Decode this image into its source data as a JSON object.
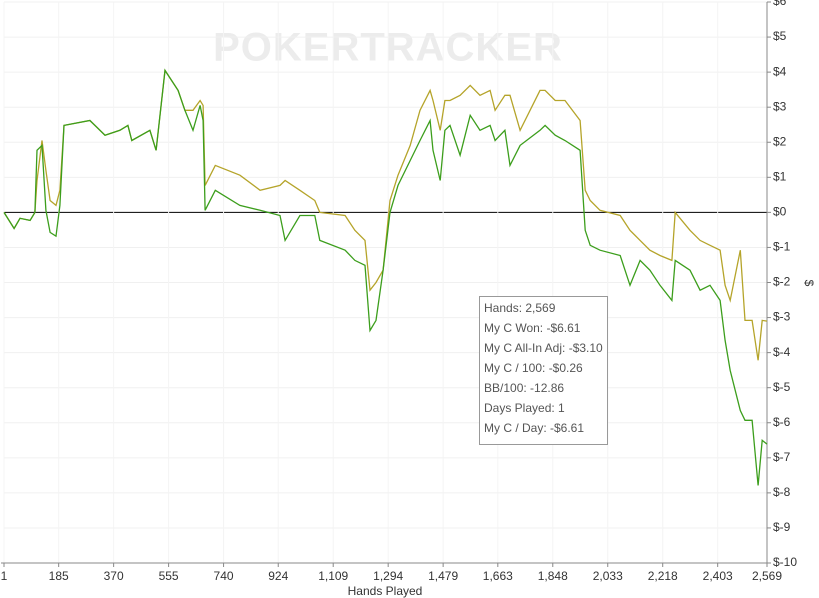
{
  "chart_data": {
    "type": "line",
    "watermark": "POKERTRACKER",
    "x_label": "Hands Played",
    "y_label": "$",
    "x": [
      1,
      35,
      55,
      89,
      105,
      112,
      129,
      142,
      156,
      176,
      189,
      203,
      290,
      341,
      391,
      418,
      431,
      492,
      513,
      543,
      587,
      610,
      637,
      661,
      671,
      678,
      712,
      795,
      863,
      930,
      947,
      997,
      1047,
      1064,
      1149,
      1182,
      1216,
      1233,
      1253,
      1277,
      1300,
      1327,
      1368,
      1401,
      1435,
      1445,
      1469,
      1485,
      1502,
      1536,
      1570,
      1603,
      1637,
      1654,
      1687,
      1704,
      1738,
      1805,
      1822,
      1856,
      1889,
      1940,
      1957,
      1974,
      2007,
      2075,
      2108,
      2142,
      2175,
      2209,
      2249,
      2260,
      2310,
      2344,
      2377,
      2411,
      2428,
      2445,
      2479,
      2495,
      2519,
      2539,
      2553,
      2569
    ],
    "series": [
      {
        "color": "#3c9e1c",
        "values": [
          0,
          -0.46,
          -0.17,
          -0.23,
          0,
          1.77,
          1.91,
          0.06,
          -0.57,
          -0.68,
          0.2,
          2.48,
          2.62,
          2.2,
          2.34,
          2.48,
          2.05,
          2.34,
          1.77,
          4.05,
          3.48,
          2.91,
          2.34,
          3.05,
          2.62,
          0.06,
          0.63,
          0.2,
          0.06,
          -0.09,
          -0.8,
          -0.09,
          -0.09,
          -0.8,
          -1.08,
          -1.37,
          -1.51,
          -3.37,
          -3.08,
          -1.65,
          0,
          0.77,
          1.48,
          2.05,
          2.62,
          1.77,
          0.91,
          2.34,
          2.48,
          1.63,
          2.77,
          2.34,
          2.48,
          2.05,
          2.34,
          1.34,
          1.91,
          2.34,
          2.48,
          2.2,
          2.05,
          1.77,
          -0.51,
          -0.94,
          -1.08,
          -1.23,
          -2.08,
          -1.37,
          -1.65,
          -2.08,
          -2.51,
          -1.37,
          -1.65,
          -2.22,
          -2.08,
          -2.51,
          -3.65,
          -4.51,
          -5.65,
          -5.93,
          -5.93,
          -7.79,
          -6.5,
          -6.61
        ]
      },
      {
        "color": "#b5a42a",
        "values": [
          0,
          -0.46,
          -0.17,
          -0.23,
          0,
          0.91,
          2.05,
          1.2,
          0.34,
          0.2,
          0.63,
          2.48,
          2.62,
          2.2,
          2.34,
          2.48,
          2.05,
          2.34,
          1.77,
          4.05,
          3.48,
          2.91,
          2.91,
          3.19,
          3.05,
          0.77,
          1.34,
          1.06,
          0.63,
          0.77,
          0.91,
          0.63,
          0.34,
          0,
          -0.09,
          -0.51,
          -0.8,
          -2.22,
          -2.0,
          -1.65,
          0.34,
          1.06,
          1.91,
          2.91,
          3.48,
          3.19,
          2.34,
          3.19,
          3.19,
          3.34,
          3.62,
          3.34,
          3.48,
          2.91,
          3.34,
          3.34,
          2.34,
          3.48,
          3.48,
          3.19,
          3.19,
          2.62,
          0.63,
          0.34,
          0.06,
          -0.09,
          -0.51,
          -0.8,
          -1.08,
          -1.23,
          -1.37,
          0,
          -0.51,
          -0.8,
          -0.94,
          -1.08,
          -2.08,
          -2.51,
          -1.08,
          -3.08,
          -3.08,
          -4.22,
          -3.08,
          -3.1
        ]
      }
    ],
    "xlim": [
      1,
      2569
    ],
    "xticks": [
      1,
      185,
      370,
      555,
      740,
      924,
      {
        "value": 1109,
        "label": "1,109"
      },
      {
        "value": 1294,
        "label": "1,294"
      },
      {
        "value": 1479,
        "label": "1,479"
      },
      {
        "value": 1663,
        "label": "1,663"
      },
      {
        "value": 1848,
        "label": "1,848"
      },
      {
        "value": 2033,
        "label": "2,033"
      },
      {
        "value": 2218,
        "label": "2,218"
      },
      {
        "value": 2403,
        "label": "2,403"
      },
      {
        "value": 2569,
        "label": "2,569"
      }
    ],
    "ylim": [
      -10,
      6
    ],
    "yticks": [
      {
        "value": 6,
        "label": "$6"
      },
      {
        "value": 5,
        "label": "$5"
      },
      {
        "value": 4,
        "label": "$4"
      },
      {
        "value": 3,
        "label": "$3"
      },
      {
        "value": 2,
        "label": "$2"
      },
      {
        "value": 1,
        "label": "$1"
      },
      {
        "value": 0,
        "label": "$0"
      },
      {
        "value": -1,
        "label": "$-1"
      },
      {
        "value": -2,
        "label": "$-2"
      },
      {
        "value": -3,
        "label": "$-3"
      },
      {
        "value": -4,
        "label": "$-4"
      },
      {
        "value": -5,
        "label": "$-5"
      },
      {
        "value": -6,
        "label": "$-6"
      },
      {
        "value": -7,
        "label": "$-7"
      },
      {
        "value": -8,
        "label": "$-8"
      },
      {
        "value": -9,
        "label": "$-9"
      },
      {
        "value": -10,
        "label": "$-10"
      }
    ],
    "grid": true,
    "tooltip": [
      "Hands: 2,569",
      "My C Won: -$6.61",
      "My C All-In Adj: -$3.10",
      "My C / 100: -$0.26",
      "BB/100: -12.86",
      "Days Played: 1",
      "My C / Day: -$6.61"
    ]
  }
}
